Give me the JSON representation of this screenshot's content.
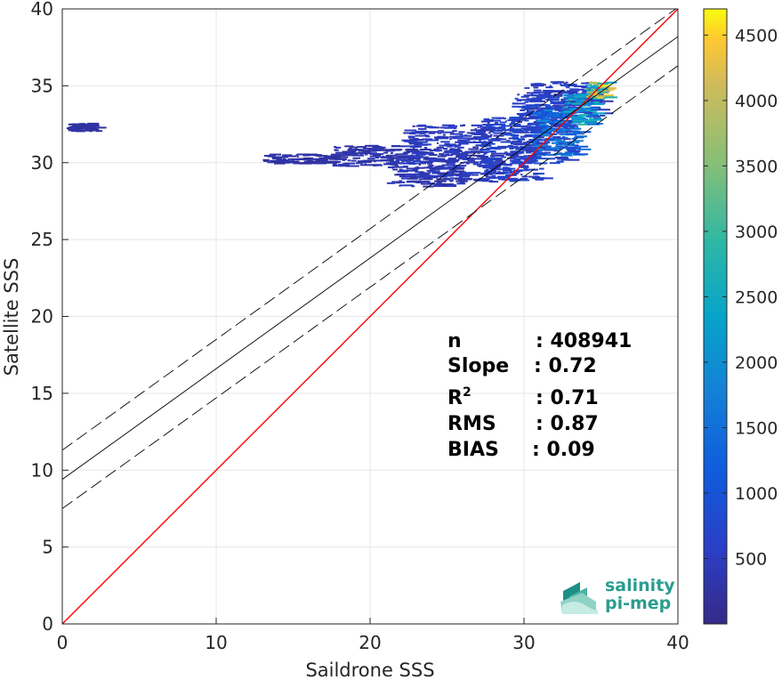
{
  "chart_data": {
    "type": "heatmap",
    "xlabel": "Saildrone SSS",
    "ylabel": "Satellite SSS",
    "xlim": [
      0,
      40
    ],
    "ylim": [
      0,
      40
    ],
    "xticks": [
      0,
      10,
      20,
      30,
      40
    ],
    "yticks": [
      0,
      5,
      10,
      15,
      20,
      25,
      30,
      35,
      40
    ],
    "grid": true,
    "lines": {
      "one_to_one": {
        "slope": 1,
        "intercept": 0,
        "color": "#ff0000"
      },
      "regression": {
        "slope": 0.72,
        "intercept": 9.4,
        "color": "#000000"
      },
      "upper_bound": {
        "slope": 0.72,
        "intercept": 11.3,
        "style": "dashed"
      },
      "lower_bound": {
        "slope": 0.72,
        "intercept": 7.5,
        "style": "dashed"
      }
    },
    "density_clusters": [
      {
        "x": [
          0.2,
          2.2
        ],
        "y": [
          32.1,
          32.6
        ],
        "level": 0.05
      },
      {
        "x": [
          13,
          17.5
        ],
        "y": [
          30.0,
          30.6
        ],
        "level": 0.05
      },
      {
        "x": [
          17.5,
          21.5
        ],
        "y": [
          29.8,
          31.2
        ],
        "level": 0.07
      },
      {
        "x": [
          21,
          26
        ],
        "y": [
          28.5,
          31.0
        ],
        "level": 0.08
      },
      {
        "x": [
          22,
          28
        ],
        "y": [
          28.8,
          32.5
        ],
        "level": 0.1
      },
      {
        "x": [
          27,
          31
        ],
        "y": [
          28.8,
          33.0
        ],
        "level": 0.13
      },
      {
        "x": [
          29,
          33
        ],
        "y": [
          30.0,
          34.5
        ],
        "level": 0.14
      },
      {
        "x": [
          30,
          35
        ],
        "y": [
          33.0,
          35.3
        ],
        "level": 0.12
      },
      {
        "x": [
          30.5,
          33.5
        ],
        "y": [
          30.5,
          33.5
        ],
        "level": 0.3
      },
      {
        "x": [
          32.5,
          34.5
        ],
        "y": [
          32.5,
          34.5
        ],
        "level": 0.45
      },
      {
        "x": [
          34,
          35.3
        ],
        "y": [
          34.2,
          35.3
        ],
        "level": 0.75
      }
    ],
    "colorbar": {
      "min": 0,
      "max": 4700,
      "ticks": [
        500,
        1000,
        1500,
        2000,
        2500,
        3000,
        3500,
        4000,
        4500
      ],
      "colormap": "parula"
    }
  },
  "stats": {
    "labels": [
      "n",
      "Slope",
      "R",
      "RMS",
      "BIAS"
    ],
    "r_superscript": "2",
    "values": [
      ": 408941",
      ": 0.72",
      ": 0.71",
      ": 0.87",
      ": 0.09"
    ]
  },
  "logo": {
    "line1": "salinity",
    "line2": "pi-mep",
    "color": "#2a9d8f"
  }
}
